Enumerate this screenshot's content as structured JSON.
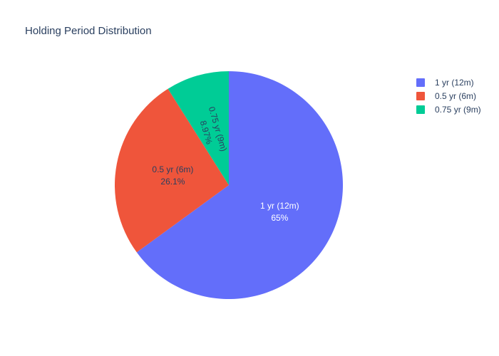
{
  "chart_data": {
    "type": "pie",
    "title": "Holding Period Distribution",
    "legend_position": "top-right",
    "series": [
      {
        "labels": [
          "1 yr (12m)",
          "0.5 yr (6m)",
          "0.75 yr (9m)"
        ],
        "values": [
          65,
          26.1,
          8.97
        ],
        "percent_labels": [
          "65%",
          "26.1%",
          "8.97%"
        ],
        "colors": [
          "#636efa",
          "#ef553b",
          "#00cc96"
        ],
        "label_colors": [
          "#ffffff",
          "#2a3f5f",
          "#2a3f5f"
        ]
      }
    ]
  }
}
